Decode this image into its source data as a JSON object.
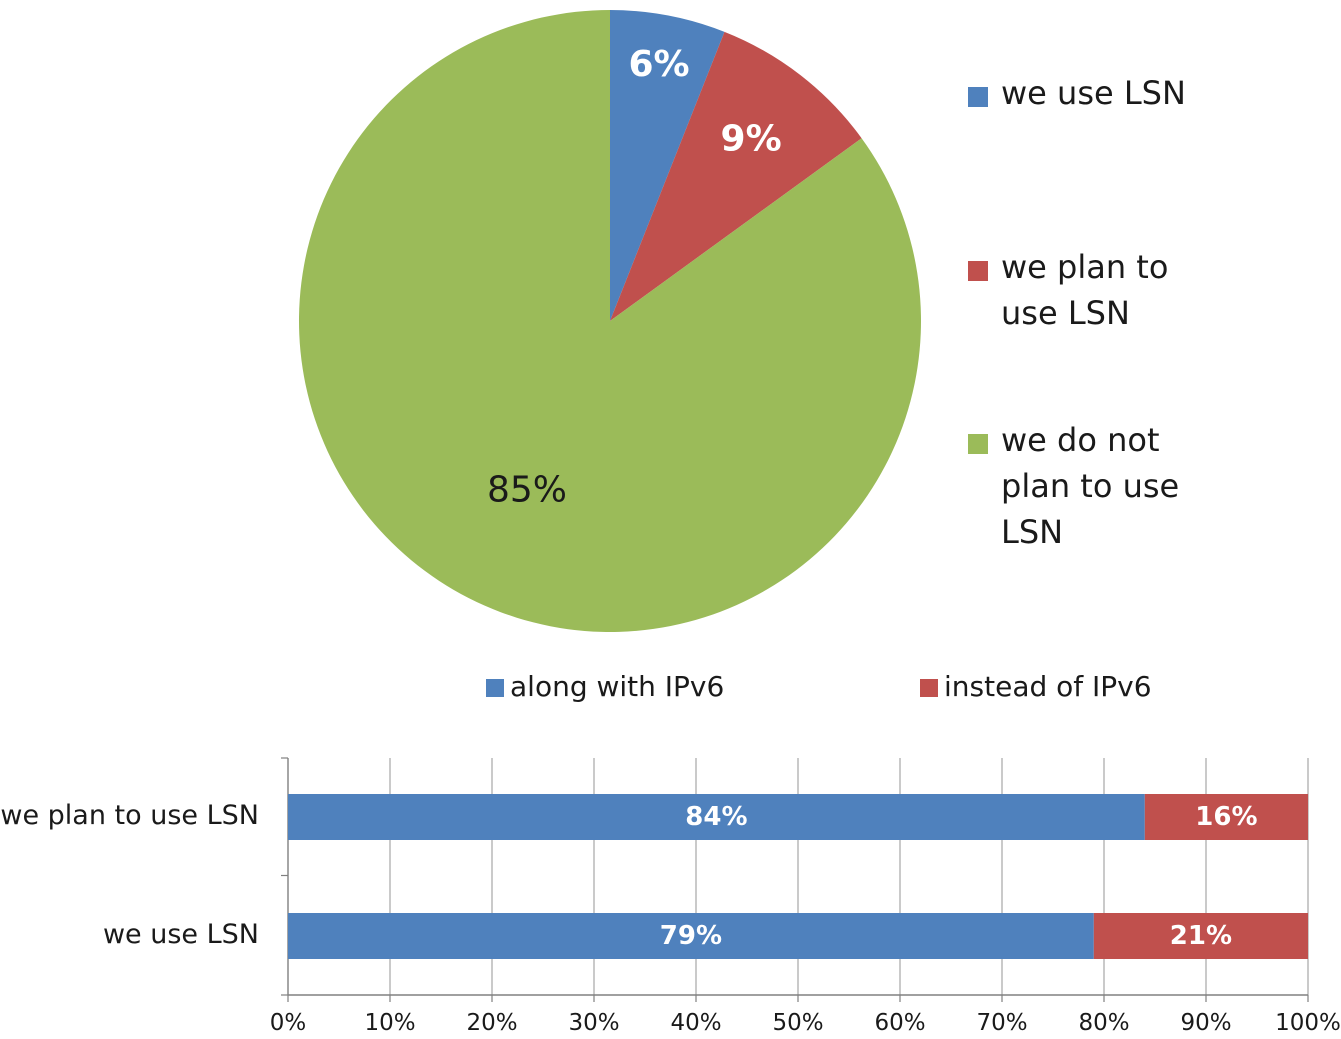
{
  "colors": {
    "blue": "#4f81bd",
    "red": "#c0504d",
    "green": "#9bbb59",
    "grid": "#a6a6a6"
  },
  "chart_data": [
    {
      "type": "pie",
      "title": "",
      "slices": [
        {
          "label": "we use LSN",
          "value": 6,
          "display": "6%",
          "color": "#4f81bd"
        },
        {
          "label": "we plan to use LSN",
          "value": 9,
          "display": "9%",
          "color": "#c0504d"
        },
        {
          "label": "we do not plan to use LSN",
          "value": 85,
          "display": "85%",
          "color": "#9bbb59"
        }
      ],
      "legend": {
        "position": "right",
        "entries": [
          "we use LSN",
          "we plan to use LSN",
          "we do not plan to use LSN"
        ]
      }
    },
    {
      "type": "bar",
      "orientation": "horizontal",
      "stacked": "percent",
      "title": "",
      "categories": [
        "we plan to use LSN",
        "we use LSN"
      ],
      "series": [
        {
          "name": "along with IPv6",
          "color": "#4f81bd",
          "values": [
            84,
            79
          ],
          "labels": [
            "84%",
            "79%"
          ]
        },
        {
          "name": "instead of IPv6",
          "color": "#c0504d",
          "values": [
            16,
            21
          ],
          "labels": [
            "16%",
            "21%"
          ]
        }
      ],
      "xlim": [
        0,
        100
      ],
      "xticks": [
        "0%",
        "10%",
        "20%",
        "30%",
        "40%",
        "50%",
        "60%",
        "70%",
        "80%",
        "90%",
        "100%"
      ],
      "grid": true,
      "legend": {
        "position": "top"
      }
    }
  ]
}
